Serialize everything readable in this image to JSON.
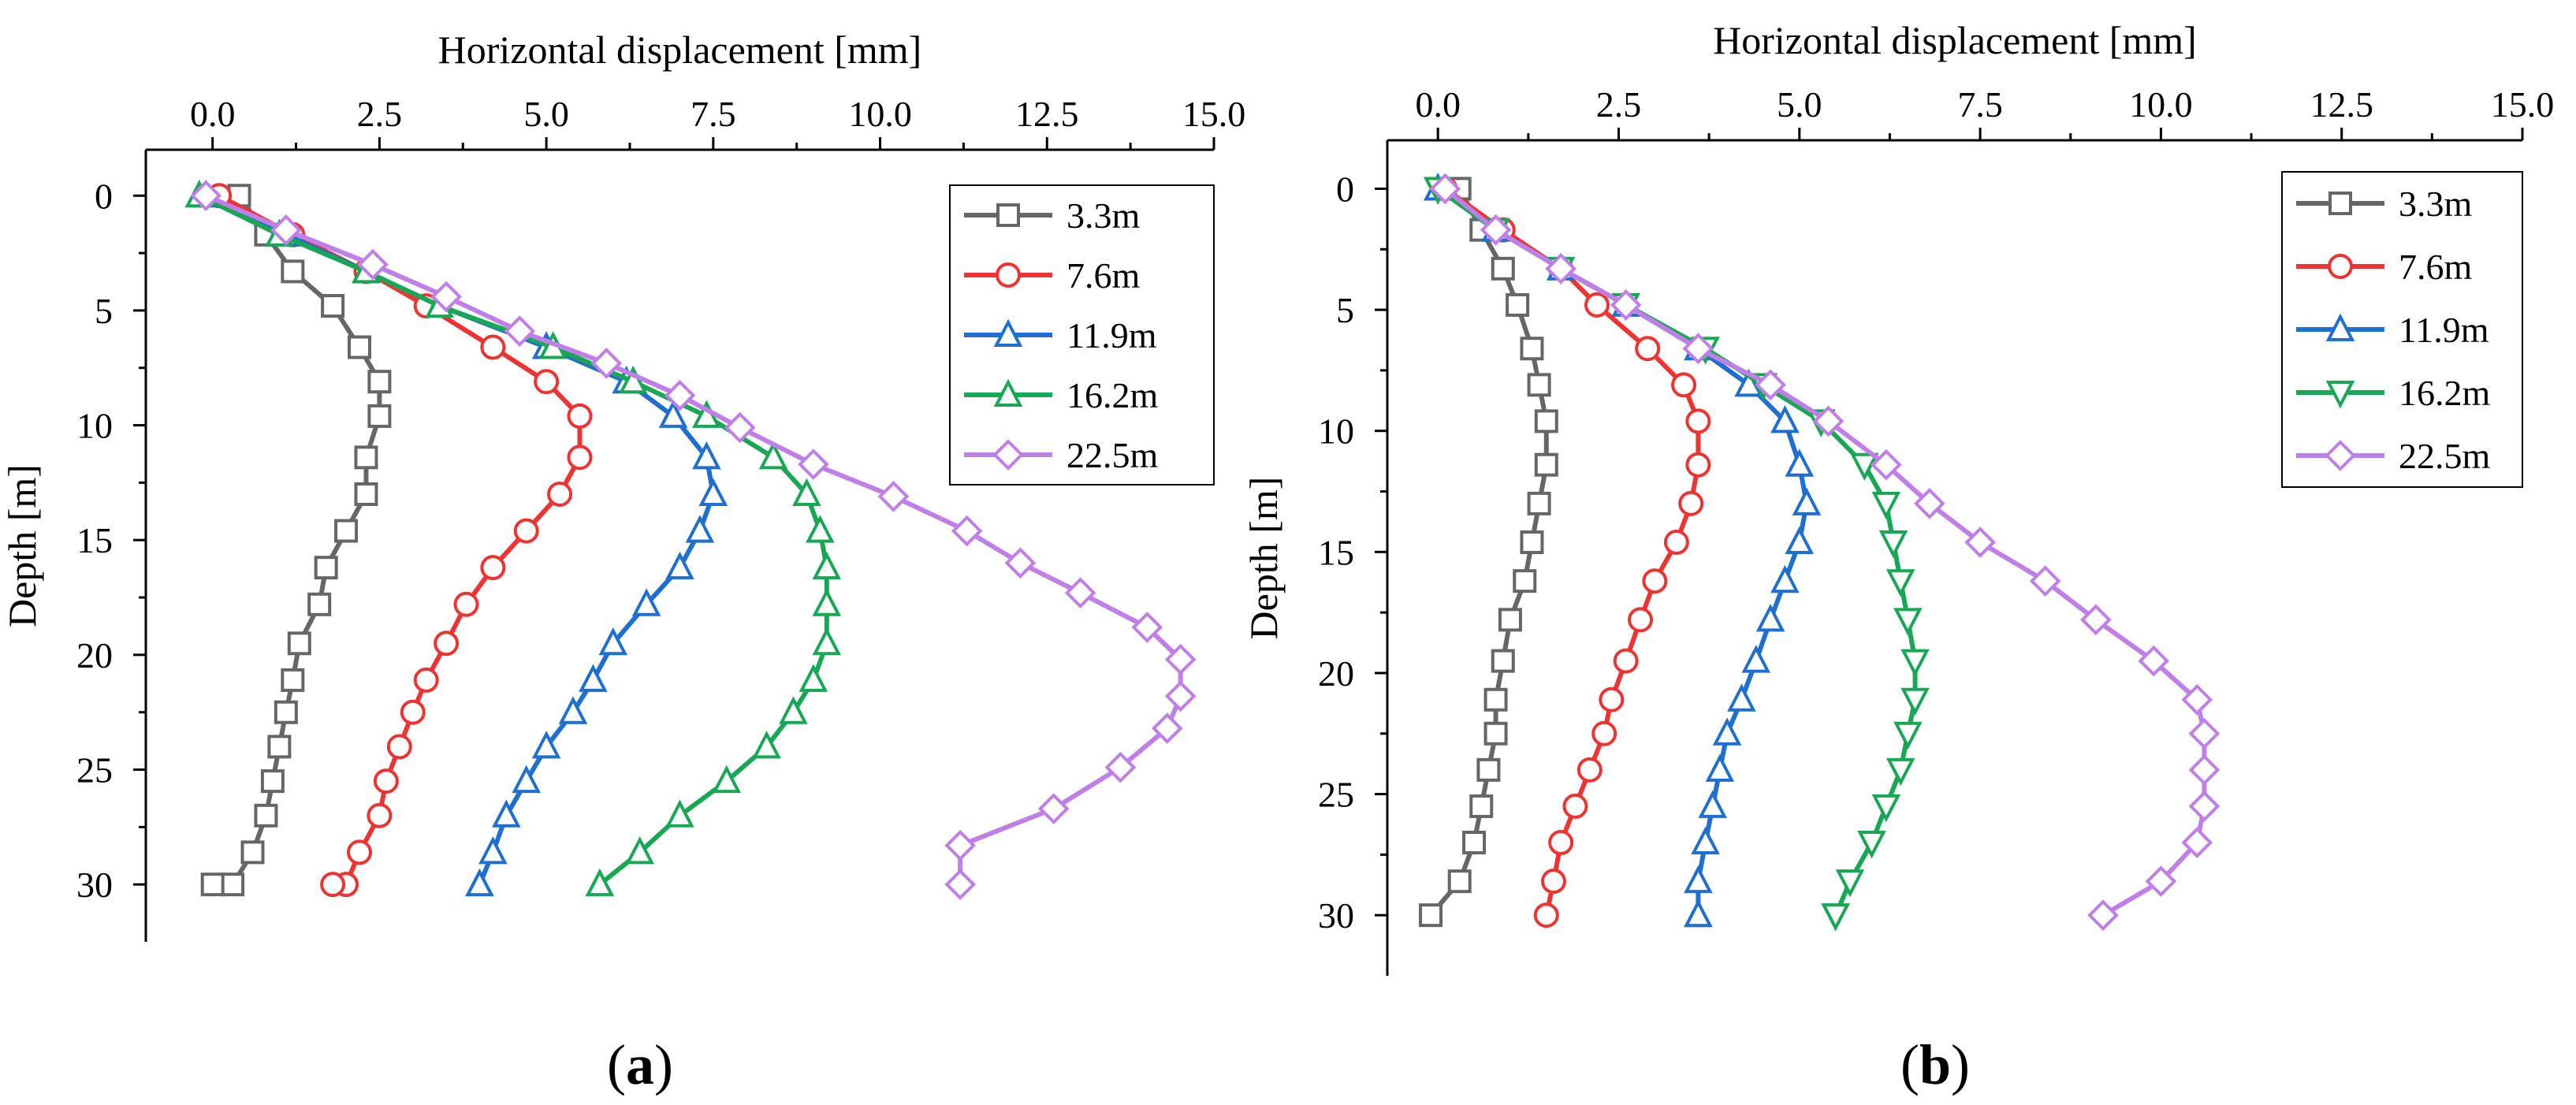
{
  "colors": {
    "3.3m": "#666666",
    "7.6m": "#ee3333",
    "11.9m": "#1f6fd1",
    "16.2m": "#18a855",
    "22.5m": "#bf7fe6"
  },
  "chart_data": [
    {
      "panel": "a",
      "panel_label_prefix": "(",
      "panel_label_letter": "a",
      "panel_label_suffix": ")",
      "type": "line",
      "xlabel": "Horizontal displacement [mm]",
      "ylabel": "Depth [m]",
      "xlim": [
        -1.0,
        15.0
      ],
      "ylim": [
        32.5,
        -2.0
      ],
      "xticks": [
        0.0,
        2.5,
        5.0,
        7.5,
        10.0,
        12.5,
        15.0
      ],
      "xtick_labels": [
        "0.0",
        "2.5",
        "5.0",
        "7.5",
        "10.0",
        "12.5",
        "15.0"
      ],
      "yticks": [
        0,
        5,
        10,
        15,
        20,
        25,
        30
      ],
      "ytick_labels": [
        "0",
        "5",
        "10",
        "15",
        "20",
        "25",
        "30"
      ],
      "legend_position": "top-right",
      "series": [
        {
          "name": "3.3m",
          "marker": "square",
          "x": [
            0.4,
            0.8,
            1.2,
            1.8,
            2.2,
            2.5,
            2.5,
            2.3,
            2.3,
            2.0,
            1.7,
            1.6,
            1.3,
            1.2,
            1.1,
            1.0,
            0.9,
            0.8,
            0.6,
            0.3,
            0.0
          ],
          "y": [
            0,
            1.7,
            3.3,
            4.8,
            6.6,
            8.1,
            9.6,
            11.4,
            13.0,
            14.6,
            16.2,
            17.8,
            19.5,
            21.1,
            22.5,
            24.0,
            25.5,
            27.0,
            28.6,
            30.0,
            30.0
          ]
        },
        {
          "name": "7.6m",
          "marker": "circle",
          "x": [
            0.1,
            1.2,
            2.3,
            3.2,
            4.2,
            5.0,
            5.5,
            5.5,
            5.2,
            4.7,
            4.2,
            3.8,
            3.5,
            3.2,
            3.0,
            2.8,
            2.6,
            2.5,
            2.2,
            2.0,
            1.8
          ],
          "y": [
            0,
            1.7,
            3.3,
            4.8,
            6.6,
            8.1,
            9.6,
            11.4,
            13.0,
            14.6,
            16.2,
            17.8,
            19.5,
            21.1,
            22.5,
            24.0,
            25.5,
            27.0,
            28.6,
            30.0,
            30.0
          ]
        },
        {
          "name": "11.9m",
          "marker": "triangle-up",
          "x": [
            -0.1,
            1.1,
            2.3,
            3.4,
            5.0,
            6.2,
            6.9,
            7.4,
            7.5,
            7.3,
            7.0,
            6.5,
            6.0,
            5.7,
            5.4,
            5.0,
            4.7,
            4.4,
            4.2,
            4.0,
            4.0
          ],
          "y": [
            0,
            1.7,
            3.3,
            4.8,
            6.6,
            8.1,
            9.6,
            11.4,
            13.0,
            14.6,
            16.2,
            17.8,
            19.5,
            21.1,
            22.5,
            24.0,
            25.5,
            27.0,
            28.6,
            30.0,
            30.0
          ]
        },
        {
          "name": "16.2m",
          "marker": "triangle-up",
          "x": [
            -0.2,
            1.0,
            2.3,
            3.4,
            5.1,
            6.3,
            7.4,
            8.4,
            8.9,
            9.1,
            9.2,
            9.2,
            9.2,
            9.0,
            8.7,
            8.3,
            7.7,
            7.0,
            6.4,
            5.8,
            5.8
          ],
          "y": [
            0,
            1.7,
            3.3,
            4.8,
            6.6,
            8.1,
            9.6,
            11.4,
            13.0,
            14.6,
            16.2,
            17.8,
            19.5,
            21.1,
            22.5,
            24.0,
            25.5,
            27.0,
            28.6,
            30.0,
            30.0
          ]
        },
        {
          "name": "22.5m",
          "marker": "diamond",
          "x": [
            -0.1,
            1.1,
            2.4,
            3.5,
            4.6,
            5.9,
            7.0,
            7.9,
            9.0,
            10.2,
            11.3,
            12.1,
            13.0,
            14.0,
            14.5,
            14.5,
            14.3,
            13.6,
            12.6,
            11.2,
            11.2
          ],
          "y": [
            0,
            1.5,
            3.0,
            4.4,
            5.9,
            7.3,
            8.7,
            10.1,
            11.7,
            13.1,
            14.6,
            16.0,
            17.3,
            18.8,
            20.2,
            21.8,
            23.2,
            24.9,
            26.7,
            28.3,
            30.0
          ]
        }
      ]
    },
    {
      "panel": "b",
      "panel_label_prefix": "(",
      "panel_label_letter": "b",
      "panel_label_suffix": ")",
      "type": "line",
      "xlabel": "Horizontal displacement [mm]",
      "ylabel": "Depth [m]",
      "xlim": [
        -0.7,
        15.0
      ],
      "ylim": [
        32.5,
        -2.0
      ],
      "xticks": [
        0.0,
        2.5,
        5.0,
        7.5,
        10.0,
        12.5,
        15.0
      ],
      "xtick_labels": [
        "0.0",
        "2.5",
        "5.0",
        "7.5",
        "10.0",
        "12.5",
        "15.0"
      ],
      "yticks": [
        0,
        5,
        10,
        15,
        20,
        25,
        30
      ],
      "ytick_labels": [
        "0",
        "5",
        "10",
        "15",
        "20",
        "25",
        "30"
      ],
      "legend_position": "top-right",
      "series": [
        {
          "name": "3.3m",
          "marker": "square",
          "x": [
            0.3,
            0.6,
            0.9,
            1.1,
            1.3,
            1.4,
            1.5,
            1.5,
            1.4,
            1.3,
            1.2,
            1.0,
            0.9,
            0.8,
            0.8,
            0.7,
            0.6,
            0.5,
            0.3,
            -0.1
          ],
          "y": [
            0,
            1.7,
            3.3,
            4.8,
            6.6,
            8.1,
            9.6,
            11.4,
            13.0,
            14.6,
            16.2,
            17.8,
            19.5,
            21.1,
            22.5,
            24.0,
            25.5,
            27.0,
            28.6,
            30.0
          ]
        },
        {
          "name": "7.6m",
          "marker": "circle",
          "x": [
            0.1,
            0.9,
            1.7,
            2.2,
            2.9,
            3.4,
            3.6,
            3.6,
            3.5,
            3.3,
            3.0,
            2.8,
            2.6,
            2.4,
            2.3,
            2.1,
            1.9,
            1.7,
            1.6,
            1.5
          ],
          "y": [
            0,
            1.7,
            3.3,
            4.8,
            6.6,
            8.1,
            9.6,
            11.4,
            13.0,
            14.6,
            16.2,
            17.8,
            19.5,
            21.1,
            22.5,
            24.0,
            25.5,
            27.0,
            28.6,
            30.0
          ]
        },
        {
          "name": "11.9m",
          "marker": "triangle-up",
          "x": [
            0.0,
            0.8,
            1.7,
            2.6,
            3.6,
            4.3,
            4.8,
            5.0,
            5.1,
            5.0,
            4.8,
            4.6,
            4.4,
            4.2,
            4.0,
            3.9,
            3.8,
            3.7,
            3.6,
            3.6,
            3.6
          ],
          "y": [
            0,
            1.7,
            3.3,
            4.8,
            6.6,
            8.1,
            9.6,
            11.4,
            13.0,
            14.6,
            16.2,
            17.8,
            19.5,
            21.1,
            22.5,
            24.0,
            25.5,
            27.0,
            28.6,
            30.0,
            30.0
          ]
        },
        {
          "name": "16.2m",
          "marker": "triangle-down",
          "x": [
            0.0,
            0.8,
            1.7,
            2.6,
            3.7,
            4.5,
            5.3,
            5.9,
            6.2,
            6.3,
            6.4,
            6.5,
            6.6,
            6.6,
            6.5,
            6.4,
            6.2,
            6.0,
            5.7,
            5.5,
            5.5
          ],
          "y": [
            0,
            1.7,
            3.3,
            4.8,
            6.6,
            8.1,
            9.6,
            11.4,
            13.0,
            14.6,
            16.2,
            17.8,
            19.5,
            21.1,
            22.5,
            24.0,
            25.5,
            27.0,
            28.6,
            30.0,
            30.0
          ]
        },
        {
          "name": "22.5m",
          "marker": "diamond",
          "x": [
            0.1,
            0.8,
            1.7,
            2.6,
            3.6,
            4.6,
            5.4,
            6.2,
            6.8,
            7.5,
            8.4,
            9.1,
            9.9,
            10.5,
            10.6,
            10.6,
            10.6,
            10.5,
            10.0,
            9.2
          ],
          "y": [
            0,
            1.7,
            3.3,
            4.8,
            6.6,
            8.1,
            9.6,
            11.4,
            13.0,
            14.6,
            16.2,
            17.8,
            19.5,
            21.1,
            22.5,
            24.0,
            25.5,
            27.0,
            28.6,
            30.0
          ]
        }
      ]
    }
  ]
}
